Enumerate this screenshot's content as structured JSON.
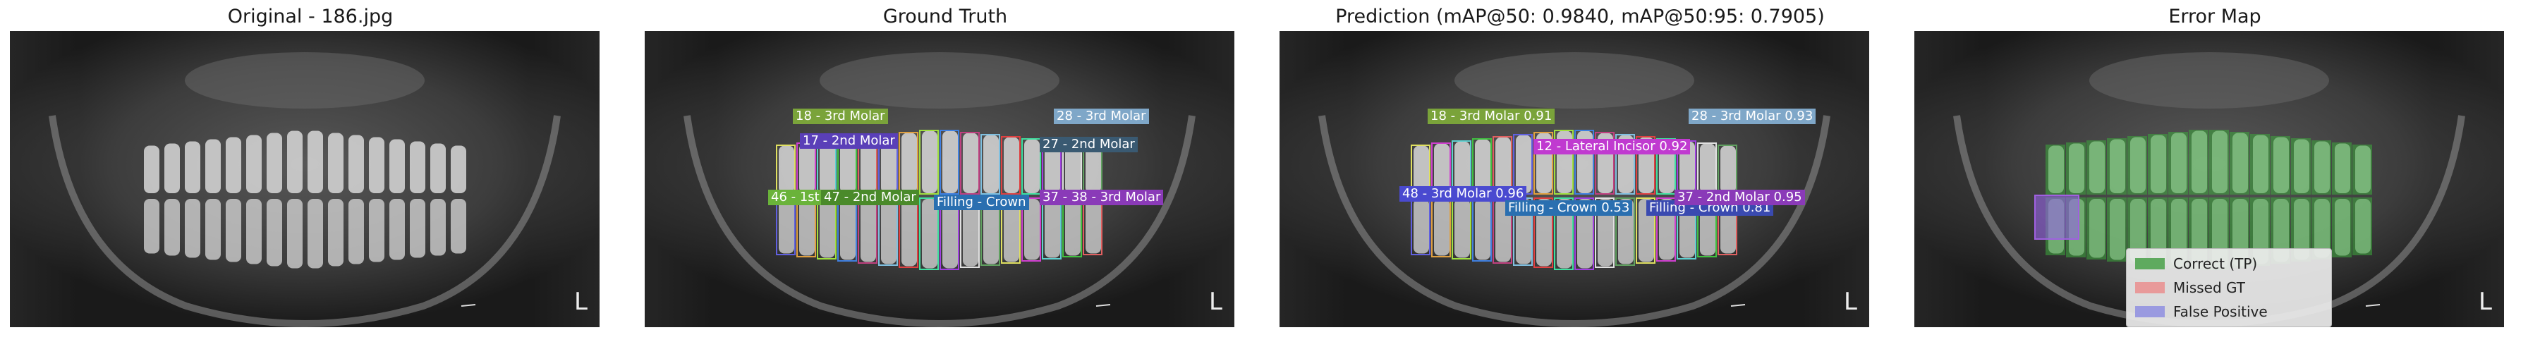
{
  "panels": [
    {
      "title": "Original - 186.jpg"
    },
    {
      "title": "Ground Truth"
    },
    {
      "title": "Prediction (mAP@50: 0.9840, mAP@50:95: 0.7905)"
    },
    {
      "title": "Error Map"
    }
  ],
  "image_marker": "L",
  "gt_labels": [
    {
      "text": "18 - 3rd Molar",
      "color": "#7aa33a"
    },
    {
      "text": "28 - 3rd Molar",
      "color": "#7fa7c8"
    },
    {
      "text": "17 - 2nd Molar",
      "color": "#5a3fb8"
    },
    {
      "text": "27 - 2nd Molar",
      "color": "#3a5a72"
    },
    {
      "text": "46 - 1st Molar",
      "color": "#6ab33a"
    },
    {
      "text": "47 - 2nd Molar",
      "color": "#4a8a2a"
    },
    {
      "text": "Filling - Crown",
      "color": "#2a6fb0"
    },
    {
      "text": "37 - 38 - 3rd Molar",
      "color": "#8a3ab8"
    }
  ],
  "pred_labels": [
    {
      "text": "18 - 3rd Molar 0.91",
      "color": "#7aa33a"
    },
    {
      "text": "28 - 3rd Molar 0.93",
      "color": "#7fa7c8"
    },
    {
      "text": "12 - Lateral Incisor 0.92",
      "color": "#c03ad0"
    },
    {
      "text": "48 - 3rd Molar 0.96",
      "color": "#4a4ad0"
    },
    {
      "text": "Filling - Crown 0.53",
      "color": "#2a6fb0"
    },
    {
      "text": "Filling - Crown 0.81",
      "color": "#3a4ab0"
    },
    {
      "text": "37 - 2nd Molar 0.95",
      "color": "#8a3ab8"
    }
  ],
  "legend": [
    {
      "label": "Correct (TP)",
      "color": "#5faa5f"
    },
    {
      "label": "Missed GT",
      "color": "#e89a9a"
    },
    {
      "label": "False Positive",
      "color": "#9a9ae0"
    }
  ]
}
